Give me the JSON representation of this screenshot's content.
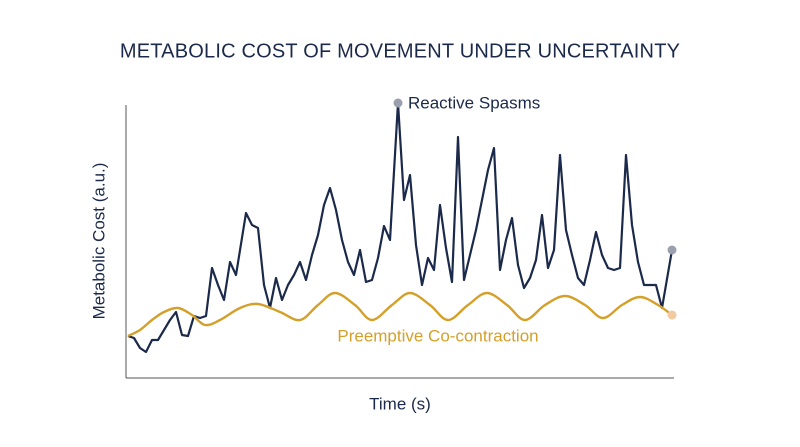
{
  "chart_data": {
    "type": "line",
    "title": "METABOLIC COST OF MOVEMENT UNDER UNCERTAINTY",
    "x_label": "Time (s)",
    "y_label": "Metabolic Cost (a.u.)",
    "xlim": [
      -2,
      546
    ],
    "ylim": [
      0,
      275
    ],
    "series": [
      {
        "name": "Reactive Spasms",
        "color": "#1b2a4a",
        "marker_color": "#9aa0ad",
        "x": [
          0,
          6,
          12,
          18,
          24,
          30,
          36,
          42,
          48,
          54,
          60,
          66,
          72,
          78,
          84,
          90,
          96,
          102,
          108,
          118,
          124,
          130,
          136,
          142,
          148,
          154,
          160,
          166,
          172,
          178,
          184,
          190,
          196,
          202,
          208,
          214,
          220,
          226,
          232,
          238,
          244,
          250,
          256,
          262,
          270,
          276,
          282,
          288,
          294,
          300,
          306,
          312,
          318,
          324,
          330,
          336,
          342,
          348,
          354,
          360,
          366,
          372,
          378,
          384,
          390,
          396,
          402,
          408,
          414,
          420,
          426,
          432,
          438,
          444,
          450,
          456,
          462,
          468,
          474,
          480,
          486,
          492,
          498,
          504,
          510,
          516,
          522,
          528,
          534,
          544
        ],
        "values": [
          42,
          40,
          30,
          26,
          38,
          38,
          48,
          58,
          66,
          43,
          42,
          62,
          60,
          62,
          110,
          93,
          78,
          116,
          103,
          165,
          153,
          150,
          93,
          70,
          100,
          78,
          93,
          103,
          116,
          98,
          123,
          143,
          173,
          190,
          168,
          138,
          116,
          103,
          128,
          96,
          98,
          120,
          152,
          138,
          275,
          178,
          203,
          133,
          93,
          120,
          108,
          173,
          130,
          96,
          241,
          98,
          123,
          148,
          178,
          208,
          230,
          108,
          138,
          160,
          113,
          90,
          100,
          118,
          163,
          110,
          128,
          223,
          148,
          123,
          100,
          93,
          118,
          146,
          123,
          110,
          108,
          110,
          223,
          153,
          116,
          93,
          93,
          93,
          70,
          128
        ]
      },
      {
        "name": "Preemptive Co-contraction",
        "color": "#d4a02a",
        "marker_color": "#f2c9a0",
        "x": [
          0,
          12,
          24,
          36,
          50,
          64,
          77,
          92,
          112,
          130,
          152,
          172,
          190,
          207,
          227,
          244,
          264,
          282,
          302,
          320,
          340,
          359,
          379,
          397,
          417,
          437,
          457,
          475,
          494,
          512,
          530,
          544
        ],
        "values": [
          42,
          48,
          58,
          66,
          70,
          63,
          53,
          58,
          70,
          74,
          66,
          58,
          73,
          85,
          73,
          58,
          73,
          85,
          73,
          58,
          73,
          85,
          73,
          58,
          73,
          82,
          73,
          60,
          73,
          81,
          73,
          63
        ]
      }
    ]
  }
}
